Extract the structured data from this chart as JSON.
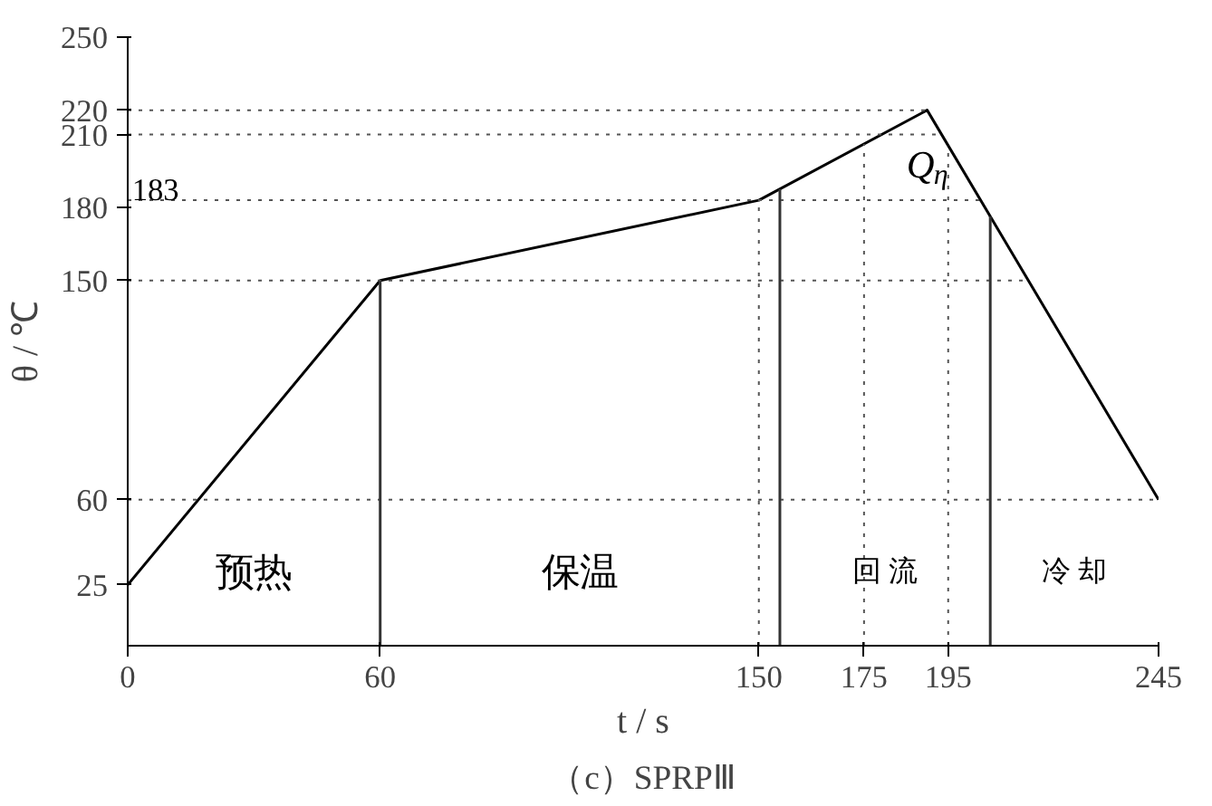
{
  "chart_data": {
    "type": "line",
    "xlabel": "t / s",
    "ylabel": "θ / ℃",
    "x": [
      0,
      60,
      150,
      190,
      245
    ],
    "series": [
      {
        "color": "#000000",
        "values": [
          25,
          150,
          183,
          220,
          60
        ]
      }
    ],
    "xlim": [
      0,
      245
    ],
    "ylim": [
      0,
      250
    ],
    "xticks": [
      0,
      60,
      150,
      175,
      195,
      245
    ],
    "yticks": [
      25,
      60,
      150,
      180,
      210,
      220,
      250
    ],
    "grid": false,
    "ref_lines": [
      {
        "axis": "y",
        "value": 60,
        "line_style": "dotted"
      },
      {
        "axis": "y",
        "value": 150,
        "line_style": "dotted"
      },
      {
        "axis": "y",
        "value": 183,
        "label": "183",
        "line_style": "dotted"
      },
      {
        "axis": "y",
        "value": 210,
        "line_style": "dotted"
      },
      {
        "axis": "y",
        "value": 220,
        "line_style": "dotted"
      },
      {
        "axis": "x",
        "value": 150,
        "line_style": "dotted"
      },
      {
        "axis": "x",
        "value": 175,
        "line_style": "dotted"
      },
      {
        "axis": "x",
        "value": 195,
        "line_style": "dotted"
      },
      {
        "axis": "x",
        "value": 60,
        "line_style": "solid"
      },
      {
        "axis": "x",
        "value": 155,
        "line_style": "solid"
      },
      {
        "axis": "x",
        "value": 205,
        "line_style": "solid"
      }
    ],
    "annotations": [
      "Q$_{η}$",
      "预热",
      "保温",
      "回 流",
      "冷 却",
      "（c）SPRPⅢ"
    ]
  }
}
